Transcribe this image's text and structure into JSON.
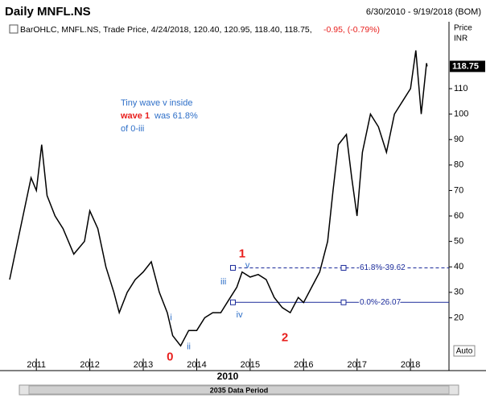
{
  "chart_data": {
    "type": "line",
    "title": "Daily MNFL.NS",
    "date_range": "6/30/2010 - 9/19/2018 (BOM)",
    "legend": "BarOHLC, MNFL.NS, Trade Price, 4/24/2018, 120.40, 120.95, 118.40, 118.75,",
    "change": "-0.95, (-0.79%)",
    "y_axis_label": "Price",
    "y_axis_unit": "INR",
    "last_value": 118.75,
    "auto_label": "Auto",
    "period_label": "2010",
    "scroll_label": "2035 Data Period",
    "color": "#000000",
    "x": [
      2010.5,
      2010.6,
      2010.75,
      2010.9,
      2011.0,
      2011.1,
      2011.2,
      2011.35,
      2011.5,
      2011.7,
      2011.9,
      2012.0,
      2012.15,
      2012.3,
      2012.45,
      2012.55,
      2012.7,
      2012.85,
      2013.0,
      2013.15,
      2013.3,
      2013.45,
      2013.55,
      2013.7,
      2013.85,
      2014.0,
      2014.15,
      2014.3,
      2014.45,
      2014.6,
      2014.75,
      2014.85,
      2015.0,
      2015.15,
      2015.3,
      2015.45,
      2015.6,
      2015.75,
      2015.9,
      2016.0,
      2016.15,
      2016.3,
      2016.45,
      2016.55,
      2016.65,
      2016.8,
      2016.9,
      2017.0,
      2017.1,
      2017.25,
      2017.4,
      2017.55,
      2017.7,
      2017.85,
      2018.0,
      2018.1,
      2018.2,
      2018.3,
      2018.31
    ],
    "values": [
      35,
      45,
      60,
      75,
      70,
      88,
      68,
      60,
      55,
      45,
      50,
      62,
      55,
      40,
      30,
      22,
      30,
      35,
      38,
      42,
      30,
      22,
      13,
      9,
      15,
      15,
      20,
      22,
      22,
      27,
      32,
      38,
      36,
      37,
      35,
      28,
      24,
      22,
      28,
      26,
      32,
      38,
      50,
      70,
      88,
      92,
      75,
      60,
      85,
      100,
      95,
      85,
      100,
      105,
      110,
      125,
      100,
      120,
      118.75
    ],
    "xlim": [
      2010.44,
      2018.72
    ],
    "xticks": [
      2011,
      2012,
      2013,
      2014,
      2015,
      2016,
      2017,
      2018
    ],
    "ylim": [
      4,
      129
    ],
    "yticks": [
      20,
      30,
      40,
      50,
      60,
      70,
      80,
      90,
      100,
      110
    ],
    "fib_levels": [
      {
        "label": "61.8%-39.62",
        "value": 39.62
      },
      {
        "label": "0.0%-26.07",
        "value": 26.07
      }
    ],
    "note": [
      "Tiny wave v inside",
      "wave 1",
      "was 61.8%",
      "of 0-iii"
    ],
    "wave_labels": [
      {
        "text": "1",
        "x": 2014.85,
        "y": 45,
        "color": "#e8201e",
        "size": 15
      },
      {
        "text": "2",
        "x": 2015.65,
        "y": 12,
        "color": "#e8201e",
        "size": 15
      },
      {
        "text": "0",
        "x": 2013.5,
        "y": 4.5,
        "color": "#e8201e",
        "size": 15
      },
      {
        "text": "i",
        "x": 2013.52,
        "y": 20,
        "color": "#2e6fc8",
        "size": 11
      },
      {
        "text": "ii",
        "x": 2013.85,
        "y": 8.5,
        "color": "#2e6fc8",
        "size": 11
      },
      {
        "text": "iii",
        "x": 2014.5,
        "y": 34,
        "color": "#2e6fc8",
        "size": 11
      },
      {
        "text": "iv",
        "x": 2014.8,
        "y": 21,
        "color": "#2e6fc8",
        "size": 11
      },
      {
        "text": "v",
        "x": 2014.95,
        "y": 40.5,
        "color": "#2e6fc8",
        "size": 11
      }
    ]
  }
}
